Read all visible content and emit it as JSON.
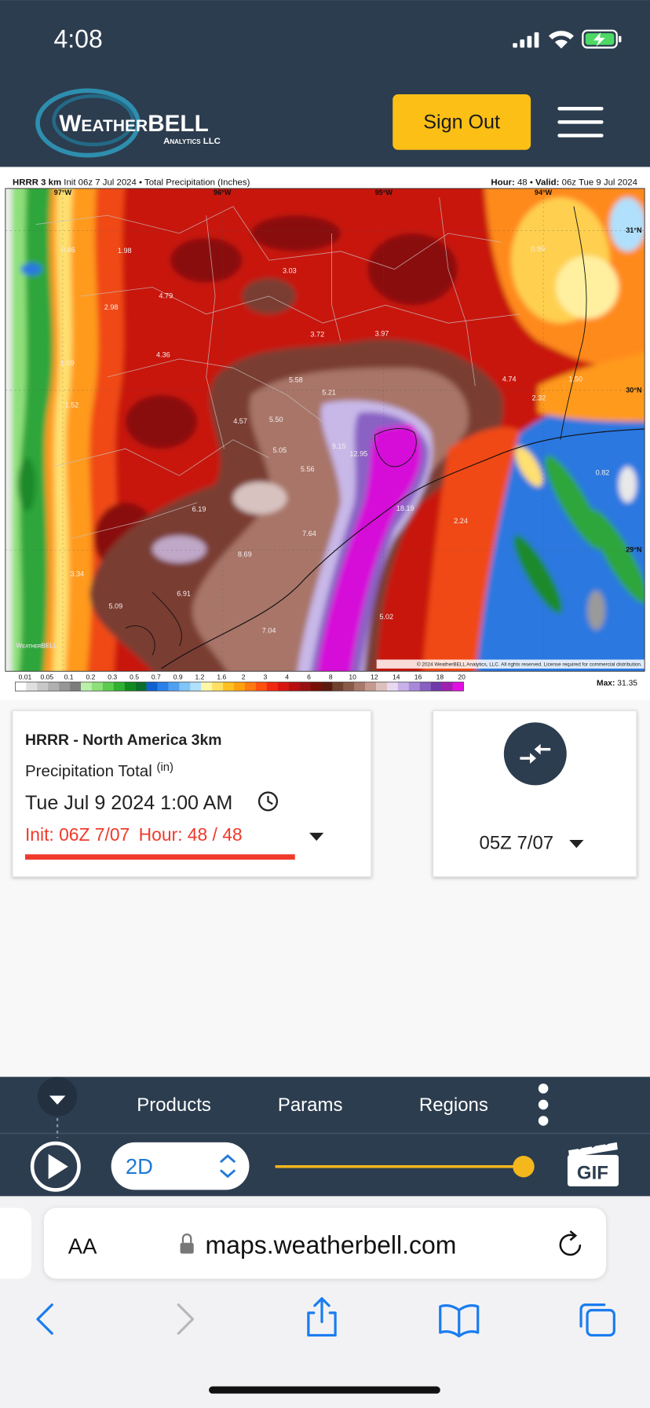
{
  "status_bar": {
    "time": "4:08"
  },
  "header": {
    "logo": {
      "name_prefix": "Weather",
      "name_suffix": "BELL",
      "tagline": "Analytics LLC"
    },
    "sign_out": "Sign Out"
  },
  "map": {
    "title_left": {
      "model": "HRRR 3 km",
      "rest": "Init 06z 7 Jul 2024 • Total Precipitation (Inches)"
    },
    "title_right": {
      "hour_label": "Hour:",
      "hour": "48 •",
      "valid_label": "Valid:",
      "valid": "06z Tue 9 Jul 2024"
    },
    "longitudes": [
      "97°W",
      "96°W",
      "95°W",
      "94°W"
    ],
    "latitudes": [
      "31°N",
      "30°N",
      "29°N"
    ],
    "labels": [
      "0.46",
      "1.98",
      "3.03",
      "0.99",
      "4.79",
      "2.98",
      "3.72",
      "3.97",
      "4.36",
      "1.09",
      "5.58",
      "5.21",
      "4.74",
      "1.50",
      "2.32",
      "1.52",
      "4.57",
      "5.50",
      "9.15",
      "12.95",
      "5.05",
      "5.56",
      "0.82",
      "6.19",
      "18.19",
      "2.24",
      "7.64",
      "8.69",
      "3.34",
      "6.91",
      "5.09",
      "5.02",
      "7.04"
    ],
    "watermark": "WeatherBELL",
    "copyright": "© 2024 WeatherBELL Analytics, LLC. All rights reserved. License required for commercial distribution.",
    "colorbar": {
      "labels": [
        "0.01",
        "0.05",
        "0.1",
        "0.2",
        "0.3",
        "0.5",
        "0.7",
        "0.9",
        "1.2",
        "1.6",
        "2",
        "3",
        "4",
        "6",
        "8",
        "10",
        "12",
        "14",
        "16",
        "18",
        "20"
      ],
      "max_label": "Max:",
      "max": "31.35"
    }
  },
  "info_card": {
    "model": "HRRR - North America 3km",
    "param": "Precipitation Total",
    "unit": "(in)",
    "valid": "Tue Jul 9 2024 1:00 AM",
    "init": "Init: 06Z 7/07",
    "hour": "Hour: 48 / 48"
  },
  "compare_card": {
    "run": "05Z 7/07"
  },
  "toolbar": {
    "tabs": [
      "Products",
      "Params",
      "Regions"
    ],
    "mode": "2D",
    "gif": "GIF"
  },
  "browser": {
    "text_size": "AA",
    "url": "maps.weatherbell.com"
  }
}
